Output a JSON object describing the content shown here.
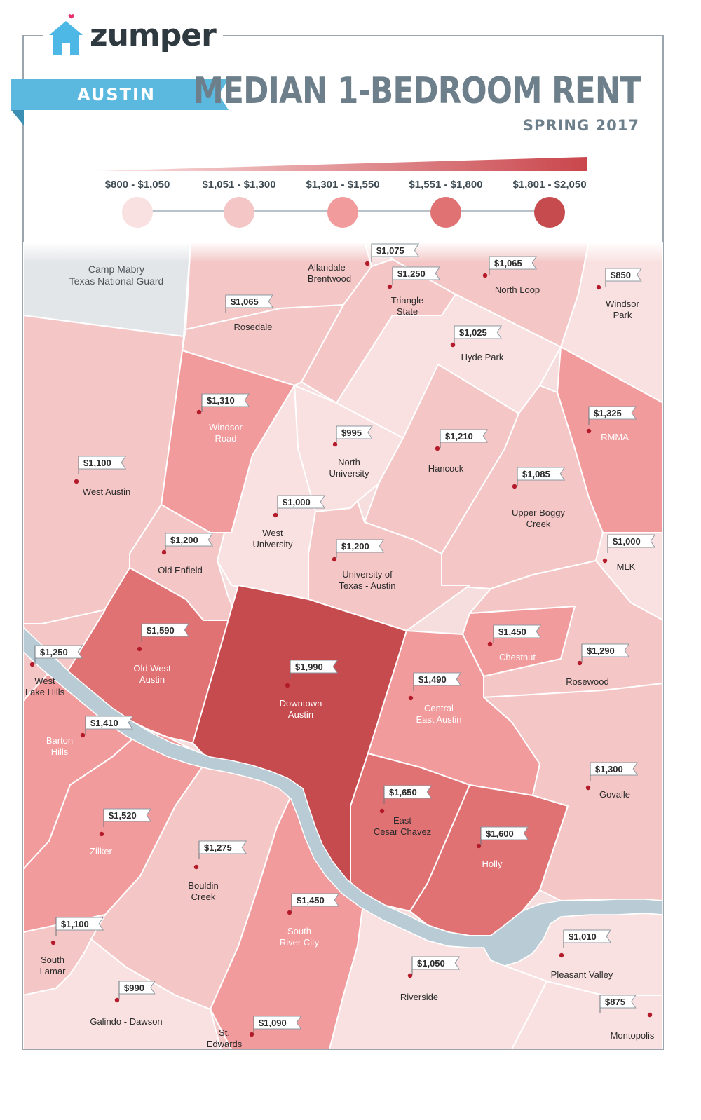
{
  "brand": {
    "name": "zumper",
    "logo_color": "#4db8e6",
    "heart_color": "#e6336e"
  },
  "city": "AUSTIN",
  "title": "MEDIAN 1-BEDROOM RENT",
  "subtitle": "SPRING 2017",
  "colors": {
    "ribbon": "#5bb9e0",
    "river": "#b9cbd5",
    "military": "#e3e6e9",
    "border": "#ffffff",
    "label_dark": "#2b2b2b",
    "label_light": "#ffffff",
    "dot": "#b31b2b"
  },
  "legend": {
    "gradient_start": "#fbe3e3",
    "gradient_end": "#c9464c",
    "bins": [
      {
        "label": "$800 - $1,050",
        "color": "#f9e1e1"
      },
      {
        "label": "$1,051 - $1,300",
        "color": "#f4c6c6"
      },
      {
        "label": "$1,301 - $1,550",
        "color": "#f29b9c"
      },
      {
        "label": "$1,551 - $1,800",
        "color": "#e07274"
      },
      {
        "label": "$1,801 - $2,050",
        "color": "#c64b4e"
      }
    ]
  },
  "military_area": {
    "line1": "Camp Mabry",
    "line2": "Texas National Guard"
  },
  "neighborhoods": [
    {
      "id": "allandale",
      "name": [
        "Allandale -",
        "Brentwood"
      ],
      "price": "$1,075",
      "bin": 1
    },
    {
      "id": "triangle",
      "name": [
        "Triangle",
        "State"
      ],
      "price": "$1,250",
      "bin": 1
    },
    {
      "id": "north-loop",
      "name": [
        "North Loop"
      ],
      "price": "$1,065",
      "bin": 1
    },
    {
      "id": "windsor-park",
      "name": [
        "Windsor",
        "Park"
      ],
      "price": "$850",
      "bin": 0
    },
    {
      "id": "rosedale",
      "name": [
        "Rosedale"
      ],
      "price": "$1,065",
      "bin": 1
    },
    {
      "id": "hyde-park",
      "name": [
        "Hyde Park"
      ],
      "price": "$1,025",
      "bin": 0
    },
    {
      "id": "windsor-road",
      "name": [
        "Windsor",
        "Road"
      ],
      "price": "$1,310",
      "bin": 2
    },
    {
      "id": "rmma",
      "name": [
        "RMMA"
      ],
      "price": "$1,325",
      "bin": 2
    },
    {
      "id": "north-university",
      "name": [
        "North",
        "University"
      ],
      "price": "$995",
      "bin": 0
    },
    {
      "id": "hancock",
      "name": [
        "Hancock"
      ],
      "price": "$1,210",
      "bin": 1
    },
    {
      "id": "west-austin",
      "name": [
        "West Austin"
      ],
      "price": "$1,100",
      "bin": 1
    },
    {
      "id": "upper-boggy-creek",
      "name": [
        "Upper Boggy",
        "Creek"
      ],
      "price": "$1,085",
      "bin": 1
    },
    {
      "id": "west-university",
      "name": [
        "West",
        "University"
      ],
      "price": "$1,000",
      "bin": 0
    },
    {
      "id": "old-enfield",
      "name": [
        "Old Enfield"
      ],
      "price": "$1,200",
      "bin": 1
    },
    {
      "id": "mlk",
      "name": [
        "MLK"
      ],
      "price": "$1,000",
      "bin": 0
    },
    {
      "id": "ut-austin",
      "name": [
        "University of",
        "Texas - Austin"
      ],
      "price": "$1,200",
      "bin": 1
    },
    {
      "id": "old-west-austin",
      "name": [
        "Old West",
        "Austin"
      ],
      "price": "$1,590",
      "bin": 3
    },
    {
      "id": "chestnut",
      "name": [
        "Chestnut"
      ],
      "price": "$1,450",
      "bin": 2
    },
    {
      "id": "west-lake-hills",
      "name": [
        "West",
        "Lake Hills"
      ],
      "price": "$1,250",
      "bin": 1
    },
    {
      "id": "rosewood",
      "name": [
        "Rosewood"
      ],
      "price": "$1,290",
      "bin": 1
    },
    {
      "id": "downtown",
      "name": [
        "Downtown",
        "Austin"
      ],
      "price": "$1,990",
      "bin": 4
    },
    {
      "id": "central-east",
      "name": [
        "Central",
        "East Austin"
      ],
      "price": "$1,490",
      "bin": 2
    },
    {
      "id": "barton-hills",
      "name": [
        "Barton",
        "Hills"
      ],
      "price": "$1,410",
      "bin": 2
    },
    {
      "id": "govalle",
      "name": [
        "Govalle"
      ],
      "price": "$1,300",
      "bin": 1
    },
    {
      "id": "east-cesar-chavez",
      "name": [
        "East",
        "Cesar Chavez"
      ],
      "price": "$1,650",
      "bin": 3
    },
    {
      "id": "zilker",
      "name": [
        "Zilker"
      ],
      "price": "$1,520",
      "bin": 2
    },
    {
      "id": "holly",
      "name": [
        "Holly"
      ],
      "price": "$1,600",
      "bin": 3
    },
    {
      "id": "bouldin-creek",
      "name": [
        "Bouldin",
        "Creek"
      ],
      "price": "$1,275",
      "bin": 1
    },
    {
      "id": "south-river-city",
      "name": [
        "South",
        "River City"
      ],
      "price": "$1,450",
      "bin": 2
    },
    {
      "id": "south-lamar",
      "name": [
        "South",
        "Lamar"
      ],
      "price": "$1,100",
      "bin": 1
    },
    {
      "id": "pleasant-valley",
      "name": [
        "Pleasant Valley"
      ],
      "price": "$1,010",
      "bin": 0
    },
    {
      "id": "riverside",
      "name": [
        "Riverside"
      ],
      "price": "$1,050",
      "bin": 0
    },
    {
      "id": "galindo-dawson",
      "name": [
        "Galindo - Dawson"
      ],
      "price": "$990",
      "bin": 0
    },
    {
      "id": "montopolis",
      "name": [
        "Montopolis"
      ],
      "price": "$875",
      "bin": 0
    },
    {
      "id": "st-edwards",
      "name": [
        "St.",
        "Edwards"
      ],
      "price": "$1,090",
      "bin": 1
    }
  ]
}
